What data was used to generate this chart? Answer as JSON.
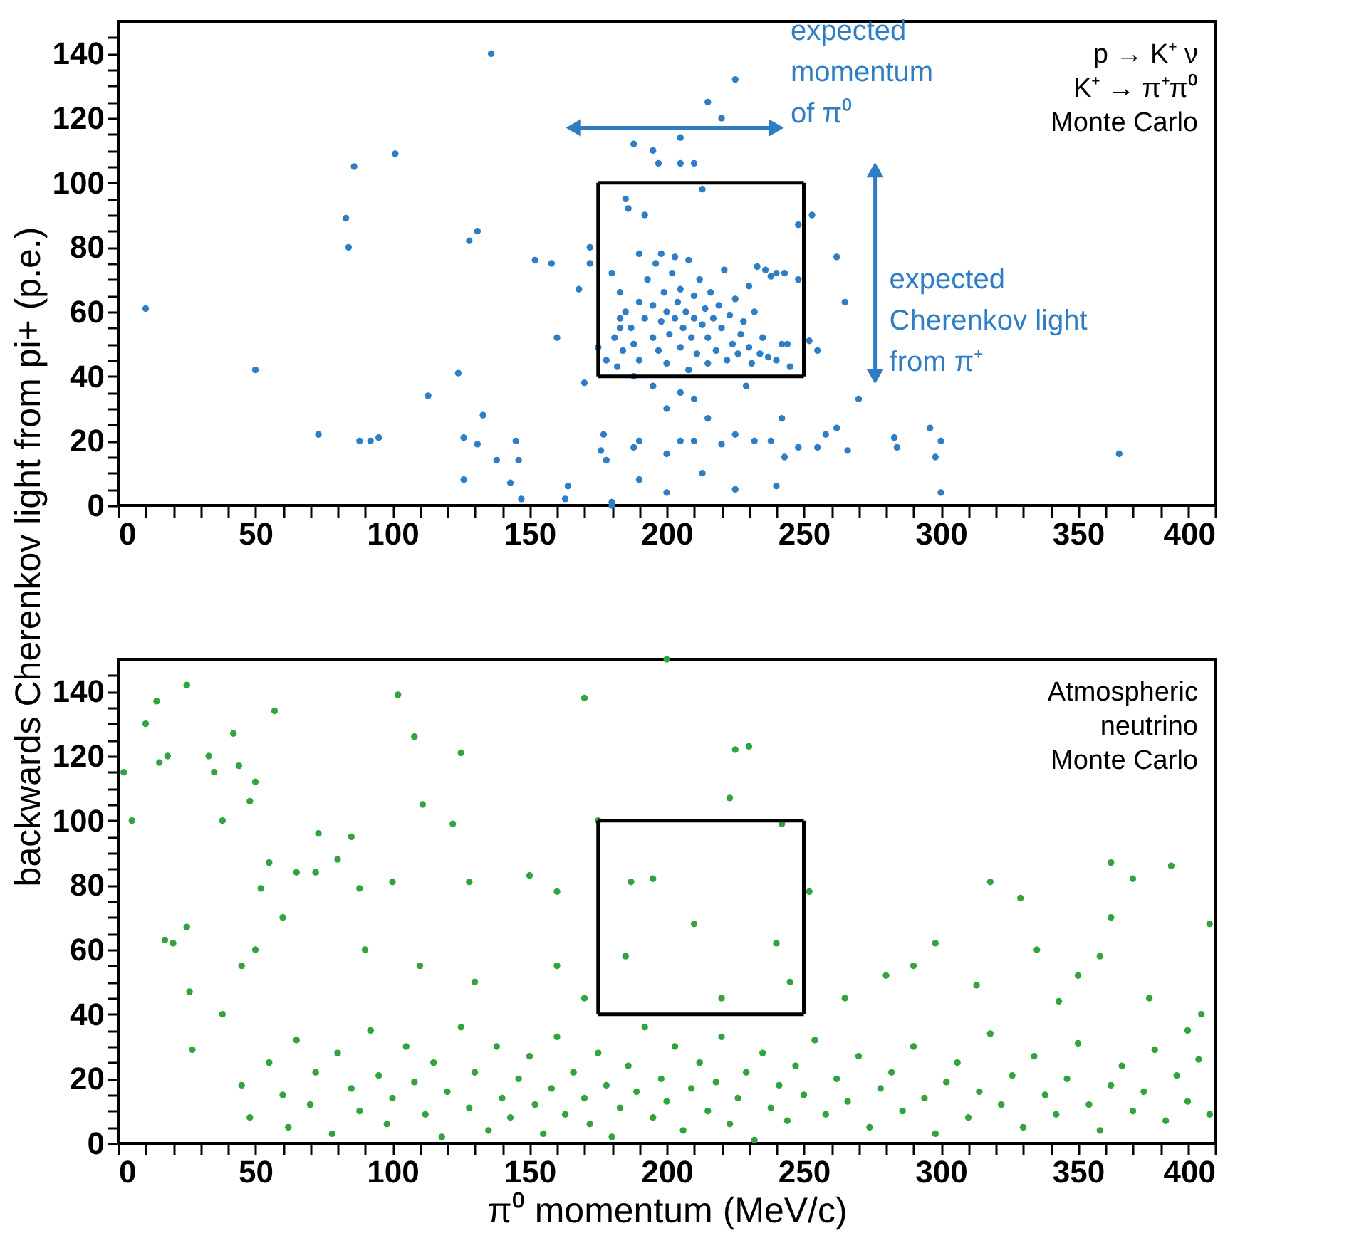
{
  "chart_data": [
    {
      "type": "scatter",
      "ylabel": "backwards Cherenkov  light from pi+ (p.e.)",
      "xlim": [
        0,
        400
      ],
      "ylim": [
        0,
        150
      ],
      "xticks": [
        0,
        {
          "value": 10,
          "label": null
        },
        {
          "value": 20,
          "label": null
        },
        {
          "value": 30,
          "label": null
        },
        {
          "value": 40,
          "label": null
        },
        50,
        {
          "value": 60,
          "label": null
        },
        {
          "value": 70,
          "label": null
        },
        {
          "value": 80,
          "label": null
        },
        {
          "value": 90,
          "label": null
        },
        100,
        {
          "value": 110,
          "label": null
        },
        {
          "value": 120,
          "label": null
        },
        {
          "value": 130,
          "label": null
        },
        {
          "value": 140,
          "label": null
        },
        150,
        {
          "value": 160,
          "label": null
        },
        {
          "value": 170,
          "label": null
        },
        {
          "value": 180,
          "label": null
        },
        {
          "value": 190,
          "label": null
        },
        200,
        {
          "value": 210,
          "label": null
        },
        {
          "value": 220,
          "label": null
        },
        {
          "value": 230,
          "label": null
        },
        {
          "value": 240,
          "label": null
        },
        250,
        {
          "value": 260,
          "label": null
        },
        {
          "value": 270,
          "label": null
        },
        {
          "value": 280,
          "label": null
        },
        {
          "value": 290,
          "label": null
        },
        300,
        {
          "value": 310,
          "label": null
        },
        {
          "value": 320,
          "label": null
        },
        {
          "value": 330,
          "label": null
        },
        {
          "value": 340,
          "label": null
        },
        350,
        {
          "value": 360,
          "label": null
        },
        {
          "value": 370,
          "label": null
        },
        {
          "value": 380,
          "label": null
        },
        {
          "value": 390,
          "label": null
        },
        400
      ],
      "yticks": [
        0,
        {
          "value": 5,
          "label": null
        },
        {
          "value": 10,
          "label": null
        },
        {
          "value": 15,
          "label": null
        },
        20,
        {
          "value": 25,
          "label": null
        },
        {
          "value": 30,
          "label": null
        },
        {
          "value": 35,
          "label": null
        },
        40,
        {
          "value": 45,
          "label": null
        },
        {
          "value": 50,
          "label": null
        },
        {
          "value": 55,
          "label": null
        },
        60,
        {
          "value": 65,
          "label": null
        },
        {
          "value": 70,
          "label": null
        },
        {
          "value": 75,
          "label": null
        },
        80,
        {
          "value": 85,
          "label": null
        },
        {
          "value": 90,
          "label": null
        },
        {
          "value": 95,
          "label": null
        },
        100,
        {
          "value": 105,
          "label": null
        },
        {
          "value": 110,
          "label": null
        },
        {
          "value": 115,
          "label": null
        },
        120,
        {
          "value": 125,
          "label": null
        },
        {
          "value": 130,
          "label": null
        },
        {
          "value": 135,
          "label": null
        },
        140,
        {
          "value": 145,
          "label": null
        }
      ],
      "grid": false,
      "annotations": [
        "p → K⁺ ν\nK⁺ → π⁺π⁰\nMonte Carlo",
        {
          "text": "expected\nmomentum\nof π⁰",
          "x": 240,
          "y": 117
        },
        {
          "text": "expected\nCherenkov light\nfrom π⁺",
          "x": 276,
          "y": 40
        }
      ],
      "series": [
        {
          "color": "#2f7dc4",
          "marker": "circle",
          "x": [
            10,
            50,
            73,
            83,
            84,
            86,
            88,
            92,
            95,
            101,
            113,
            124,
            126,
            126,
            128,
            131,
            131,
            133,
            136,
            138,
            143,
            145,
            146,
            147,
            152,
            158,
            160,
            163,
            164,
            168,
            170,
            172,
            175,
            176,
            177,
            178,
            180,
            181,
            183,
            188,
            188,
            190,
            188,
            195,
            205,
            215,
            220,
            225,
            205,
            197,
            210,
            213,
            195,
            200,
            205,
            210,
            215,
            205,
            210,
            200,
            220,
            225,
            232,
            238,
            242,
            248,
            255,
            258,
            262,
            266,
            270,
            229,
            262,
            265,
            283,
            284,
            296,
            298,
            300,
            300,
            365,
            243,
            240,
            225,
            213,
            200,
            190,
            180,
            255,
            252,
            244,
            248,
            243,
            240,
            253,
            172,
            183,
            178,
            180,
            183,
            185,
            187,
            188,
            190,
            190,
            192,
            193,
            195,
            195,
            196,
            197,
            198,
            199,
            200,
            200,
            201,
            202,
            203,
            204,
            205,
            205,
            206,
            207,
            208,
            208,
            209,
            210,
            210,
            211,
            212,
            213,
            214,
            215,
            215,
            216,
            217,
            218,
            219,
            220,
            221,
            222,
            223,
            224,
            225,
            226,
            227,
            228,
            230,
            231,
            232,
            234,
            235,
            237,
            238,
            240,
            242,
            245,
            185,
            186,
            192,
            198,
            203,
            182,
            184,
            190,
            233,
            236,
            230,
            248
          ],
          "values": [
            61,
            42,
            22,
            89,
            80,
            105,
            20,
            20,
            21,
            109,
            34,
            41,
            8,
            21,
            82,
            85,
            19,
            28,
            140,
            14,
            7,
            20,
            14,
            2,
            76,
            75,
            52,
            2,
            6,
            67,
            38,
            75,
            49,
            17,
            22,
            14,
            1,
            52,
            58,
            18,
            40,
            20,
            112,
            110,
            114,
            125,
            120,
            132,
            106,
            106,
            106,
            98,
            37,
            30,
            35,
            33,
            27,
            20,
            20,
            16,
            19,
            22,
            20,
            20,
            27,
            18,
            18,
            22,
            24,
            17,
            33,
            37,
            77,
            63,
            21,
            18,
            24,
            15,
            4,
            20,
            16,
            15,
            6,
            5,
            10,
            4,
            8,
            0,
            48,
            51,
            50,
            70,
            72,
            72,
            90,
            80,
            55,
            45,
            72,
            66,
            60,
            55,
            50,
            63,
            45,
            58,
            70,
            52,
            62,
            75,
            48,
            57,
            66,
            60,
            44,
            53,
            72,
            58,
            63,
            49,
            67,
            55,
            60,
            42,
            76,
            52,
            58,
            65,
            47,
            70,
            56,
            61,
            44,
            52,
            66,
            58,
            48,
            62,
            55,
            73,
            45,
            59,
            50,
            64,
            47,
            53,
            57,
            49,
            44,
            60,
            47,
            52,
            46,
            71,
            45,
            50,
            43,
            95,
            92,
            90,
            78,
            77,
            43,
            48,
            78,
            74,
            73,
            68,
            87
          ]
        },
        {
          "type": "line",
          "color": "#000000",
          "marker": "none",
          "x": [
            175,
            250
          ],
          "values": [
            40,
            40
          ]
        },
        {
          "type": "line",
          "color": "#000000",
          "marker": "none",
          "x": [
            250,
            250
          ],
          "values": [
            40,
            100
          ]
        },
        {
          "type": "line",
          "color": "#000000",
          "marker": "none",
          "x": [
            250,
            175
          ],
          "values": [
            100,
            100
          ]
        },
        {
          "type": "line",
          "color": "#000000",
          "marker": "none",
          "x": [
            175,
            175
          ],
          "values": [
            100,
            40
          ]
        },
        {
          "type": "line",
          "color": "#2f7dc4",
          "marker": "triangle",
          "x": [
            166,
            240
          ],
          "values": [
            117,
            117
          ]
        },
        {
          "type": "line",
          "color": "#2f7dc4",
          "marker": "triangle",
          "x": [
            276,
            276
          ],
          "values": [
            104,
            40
          ]
        }
      ]
    },
    {
      "type": "scatter",
      "xlabel": "π⁰ momentum (MeV/c)",
      "xlim": [
        0,
        400
      ],
      "ylim": [
        0,
        150
      ],
      "xticks": [
        0,
        {
          "value": 10,
          "label": null
        },
        {
          "value": 20,
          "label": null
        },
        {
          "value": 30,
          "label": null
        },
        {
          "value": 40,
          "label": null
        },
        50,
        {
          "value": 60,
          "label": null
        },
        {
          "value": 70,
          "label": null
        },
        {
          "value": 80,
          "label": null
        },
        {
          "value": 90,
          "label": null
        },
        100,
        {
          "value": 110,
          "label": null
        },
        {
          "value": 120,
          "label": null
        },
        {
          "value": 130,
          "label": null
        },
        {
          "value": 140,
          "label": null
        },
        150,
        {
          "value": 160,
          "label": null
        },
        {
          "value": 170,
          "label": null
        },
        {
          "value": 180,
          "label": null
        },
        {
          "value": 190,
          "label": null
        },
        200,
        {
          "value": 210,
          "label": null
        },
        {
          "value": 220,
          "label": null
        },
        {
          "value": 230,
          "label": null
        },
        {
          "value": 240,
          "label": null
        },
        250,
        {
          "value": 260,
          "label": null
        },
        {
          "value": 270,
          "label": null
        },
        {
          "value": 280,
          "label": null
        },
        {
          "value": 290,
          "label": null
        },
        300,
        {
          "value": 310,
          "label": null
        },
        {
          "value": 320,
          "label": null
        },
        {
          "value": 330,
          "label": null
        },
        {
          "value": 340,
          "label": null
        },
        350,
        {
          "value": 360,
          "label": null
        },
        {
          "value": 370,
          "label": null
        },
        {
          "value": 380,
          "label": null
        },
        {
          "value": 390,
          "label": null
        },
        400
      ],
      "yticks": [
        0,
        {
          "value": 5,
          "label": null
        },
        {
          "value": 10,
          "label": null
        },
        {
          "value": 15,
          "label": null
        },
        20,
        {
          "value": 25,
          "label": null
        },
        {
          "value": 30,
          "label": null
        },
        {
          "value": 35,
          "label": null
        },
        40,
        {
          "value": 45,
          "label": null
        },
        {
          "value": 50,
          "label": null
        },
        {
          "value": 55,
          "label": null
        },
        60,
        {
          "value": 65,
          "label": null
        },
        {
          "value": 70,
          "label": null
        },
        {
          "value": 75,
          "label": null
        },
        80,
        {
          "value": 85,
          "label": null
        },
        {
          "value": 90,
          "label": null
        },
        {
          "value": 95,
          "label": null
        },
        100,
        {
          "value": 105,
          "label": null
        },
        {
          "value": 110,
          "label": null
        },
        {
          "value": 115,
          "label": null
        },
        120,
        {
          "value": 125,
          "label": null
        },
        {
          "value": 130,
          "label": null
        },
        {
          "value": 135,
          "label": null
        },
        140,
        {
          "value": 145,
          "label": null
        }
      ],
      "grid": false,
      "annotations": [
        "Atmospheric\nneutrino\nMonte Carlo"
      ],
      "series": [
        {
          "color": "#33a33f",
          "marker": "circle",
          "x": [
            2,
            5,
            10,
            14,
            15,
            18,
            17,
            20,
            25,
            25,
            27,
            26,
            33,
            35,
            38,
            42,
            44,
            48,
            50,
            50,
            52,
            55,
            57,
            65,
            72,
            73,
            80,
            85,
            88,
            100,
            102,
            108,
            111,
            122,
            125,
            128,
            150,
            160,
            170,
            175,
            187,
            195,
            200,
            223,
            225,
            230,
            242,
            252,
            318,
            329,
            362,
            384,
            370,
            362,
            358,
            398,
            298,
            313,
            280,
            343,
            376,
            390,
            38,
            45,
            60,
            90,
            110,
            130,
            160,
            170,
            185,
            210,
            220,
            240,
            245,
            265,
            290,
            335,
            350,
            395,
            45,
            48,
            55,
            60,
            62,
            65,
            70,
            72,
            78,
            80,
            85,
            88,
            92,
            95,
            98,
            100,
            105,
            108,
            112,
            115,
            118,
            120,
            125,
            128,
            130,
            135,
            138,
            140,
            143,
            146,
            150,
            152,
            155,
            158,
            160,
            163,
            166,
            170,
            172,
            175,
            178,
            180,
            183,
            186,
            189,
            192,
            195,
            198,
            200,
            203,
            206,
            209,
            212,
            215,
            218,
            220,
            223,
            226,
            229,
            232,
            235,
            238,
            241,
            244,
            247,
            250,
            254,
            258,
            262,
            266,
            270,
            274,
            278,
            282,
            286,
            290,
            294,
            298,
            302,
            306,
            310,
            314,
            318,
            322,
            326,
            330,
            334,
            338,
            342,
            346,
            350,
            354,
            358,
            362,
            366,
            370,
            374,
            378,
            382,
            386,
            390,
            394,
            398
          ],
          "values": [
            115,
            100,
            130,
            137,
            118,
            120,
            63,
            62,
            142,
            67,
            29,
            47,
            120,
            115,
            100,
            127,
            117,
            106,
            112,
            60,
            79,
            87,
            134,
            84,
            84,
            96,
            88,
            95,
            79,
            81,
            139,
            126,
            105,
            99,
            121,
            81,
            83,
            78,
            138,
            100,
            81,
            82,
            150,
            107,
            122,
            123,
            99,
            78,
            81,
            76,
            87,
            86,
            82,
            70,
            58,
            68,
            62,
            49,
            52,
            44,
            45,
            35,
            40,
            55,
            70,
            60,
            55,
            50,
            55,
            45,
            58,
            68,
            45,
            62,
            50,
            45,
            55,
            60,
            52,
            40,
            18,
            8,
            25,
            15,
            5,
            32,
            12,
            22,
            3,
            28,
            17,
            10,
            35,
            21,
            6,
            14,
            30,
            19,
            9,
            25,
            2,
            16,
            36,
            11,
            22,
            4,
            30,
            14,
            8,
            20,
            27,
            12,
            3,
            17,
            33,
            9,
            22,
            14,
            6,
            28,
            18,
            2,
            11,
            24,
            16,
            36,
            8,
            20,
            13,
            30,
            4,
            17,
            25,
            10,
            19,
            33,
            6,
            14,
            22,
            1,
            28,
            11,
            18,
            7,
            24,
            15,
            32,
            9,
            20,
            13,
            27,
            5,
            17,
            22,
            10,
            30,
            14,
            3,
            19,
            25,
            8,
            16,
            34,
            12,
            21,
            5,
            27,
            15,
            9,
            20,
            31,
            12,
            4,
            18,
            24,
            10,
            16,
            29,
            7,
            21,
            13,
            26,
            9
          ]
        },
        {
          "type": "line",
          "color": "#000000",
          "marker": "none",
          "x": [
            175,
            250
          ],
          "values": [
            40,
            40
          ]
        },
        {
          "type": "line",
          "color": "#000000",
          "marker": "none",
          "x": [
            250,
            250
          ],
          "values": [
            40,
            100
          ]
        },
        {
          "type": "line",
          "color": "#000000",
          "marker": "none",
          "x": [
            250,
            175
          ],
          "values": [
            100,
            100
          ]
        },
        {
          "type": "line",
          "color": "#000000",
          "marker": "none",
          "x": [
            175,
            175
          ],
          "values": [
            100,
            40
          ]
        }
      ]
    }
  ]
}
